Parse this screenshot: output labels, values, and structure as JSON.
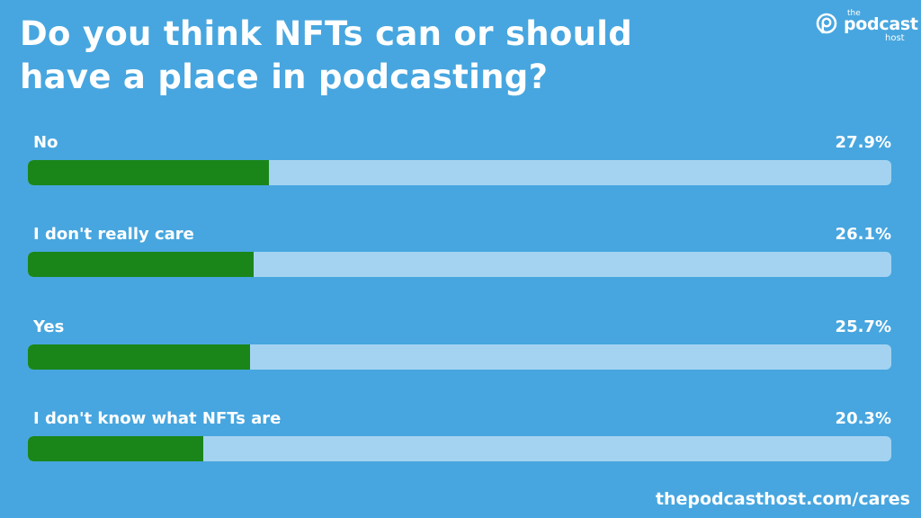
{
  "title": "Do you think NFTs can or should have a place in podcasting?",
  "logo": {
    "the": "the",
    "podcast": "podcast",
    "host": "host"
  },
  "footer": "thepodcasthost.com/cares",
  "colors": {
    "background": "#47A6DF",
    "bar_fill": "#1A861A",
    "bar_track": "#A4D3F1",
    "text": "#FFFFFF"
  },
  "rows": [
    {
      "label": "No",
      "value": "27.9%"
    },
    {
      "label": "I don't really care",
      "value": "26.1%"
    },
    {
      "label": "Yes",
      "value": "25.7%"
    },
    {
      "label": "I don't know what NFTs are",
      "value": "20.3%"
    }
  ],
  "chart_data": {
    "type": "bar",
    "orientation": "horizontal",
    "title": "Do you think NFTs can or should have a place in podcasting?",
    "categories": [
      "No",
      "I don't really care",
      "Yes",
      "I don't know what NFTs are"
    ],
    "values": [
      27.9,
      26.1,
      25.7,
      20.3
    ],
    "unit": "%",
    "xlabel": "",
    "ylabel": "",
    "xlim": [
      0,
      100
    ],
    "grid": false,
    "legend": null,
    "source": "thepodcasthost.com/cares"
  }
}
